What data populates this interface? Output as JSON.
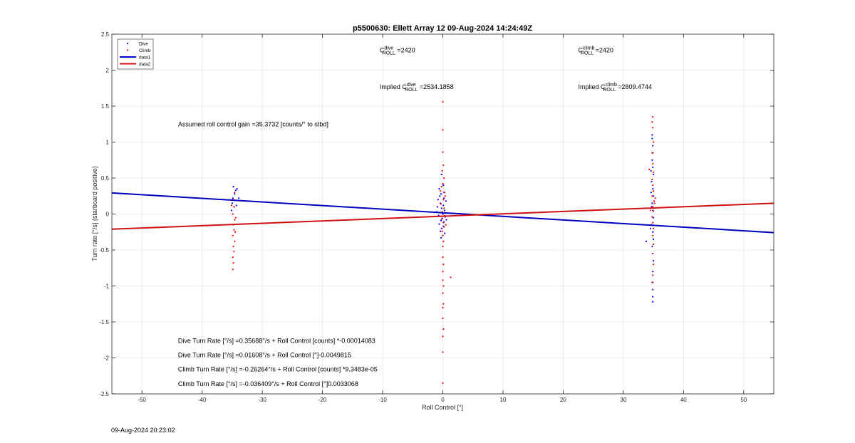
{
  "figure": {
    "title": "p5500630: Ellett Array 12 09-Aug-2024 14:24:49Z",
    "footer_date": "09-Aug-2024 20:23:02"
  },
  "chart_data": {
    "type": "scatter",
    "xlabel": "Roll Control [°]",
    "ylabel": "Turn rate [°/s] (starboard positive)",
    "xlim": [
      -55,
      55
    ],
    "ylim": [
      -2.5,
      2.5
    ],
    "xticks": [
      -50,
      -40,
      -30,
      -20,
      -10,
      0,
      10,
      20,
      30,
      40,
      50
    ],
    "yticks": [
      -2.5,
      -2,
      -1.5,
      -1,
      -0.5,
      0,
      0.5,
      1,
      1.5,
      2,
      2.5
    ],
    "grid": true,
    "legend_position": "top-left",
    "legend": [
      {
        "label": "Dive",
        "kind": "marker",
        "color": "#0000ff"
      },
      {
        "label": "Climb",
        "kind": "marker",
        "color": "#ff0000"
      },
      {
        "label": "data1",
        "kind": "line",
        "color": "#0000c0"
      },
      {
        "label": "data2",
        "kind": "line",
        "color": "#d01010"
      }
    ],
    "series": [
      {
        "name": "Dive",
        "kind": "scatter",
        "color": "#0000ff",
        "points": [
          [
            -34.8,
            0.38
          ],
          [
            -34.4,
            0.33
          ],
          [
            -34.2,
            0.35
          ],
          [
            -34.6,
            0.28
          ],
          [
            -34.9,
            0.22
          ],
          [
            -35.0,
            0.15
          ],
          [
            -34.7,
            0.1
          ],
          [
            -35.1,
            0.05
          ],
          [
            -33.9,
            0.22
          ],
          [
            -34.3,
            0.12
          ],
          [
            -0.6,
            0.35
          ],
          [
            -0.3,
            0.28
          ],
          [
            0.2,
            0.3
          ],
          [
            -0.8,
            0.2
          ],
          [
            -0.4,
            0.15
          ],
          [
            0.1,
            0.12
          ],
          [
            -0.2,
            0.08
          ],
          [
            0.3,
            0.05
          ],
          [
            -0.5,
            0.02
          ],
          [
            0.0,
            0.0
          ],
          [
            -0.7,
            -0.02
          ],
          [
            0.4,
            -0.04
          ],
          [
            -0.1,
            -0.06
          ],
          [
            -0.3,
            -0.09
          ],
          [
            0.2,
            -0.11
          ],
          [
            -0.6,
            -0.14
          ],
          [
            0.1,
            -0.17
          ],
          [
            -0.2,
            -0.2
          ],
          [
            -0.4,
            -0.24
          ],
          [
            0.3,
            -0.27
          ],
          [
            0.0,
            -0.3
          ],
          [
            -0.9,
            0.1
          ],
          [
            0.5,
            0.18
          ],
          [
            -0.5,
            0.25
          ],
          [
            0.6,
            -0.08
          ],
          [
            -1.0,
            0.03
          ],
          [
            0.2,
            0.22
          ],
          [
            -0.3,
            -0.33
          ],
          [
            0.1,
            0.4
          ],
          [
            -0.2,
            0.55
          ],
          [
            34.8,
            0.75
          ],
          [
            34.9,
            0.65
          ],
          [
            35.0,
            0.55
          ],
          [
            34.7,
            0.45
          ],
          [
            34.9,
            0.35
          ],
          [
            35.0,
            0.25
          ],
          [
            34.8,
            0.15
          ],
          [
            34.9,
            0.05
          ],
          [
            35.0,
            -0.05
          ],
          [
            34.7,
            -0.15
          ],
          [
            34.9,
            -0.25
          ],
          [
            35.0,
            -0.35
          ],
          [
            34.8,
            -0.45
          ],
          [
            34.9,
            -0.55
          ],
          [
            35.0,
            -0.65
          ],
          [
            34.9,
            -0.8
          ],
          [
            34.8,
            -0.95
          ],
          [
            34.9,
            -1.05
          ],
          [
            34.9,
            -1.15
          ],
          [
            34.9,
            -1.22
          ],
          [
            34.6,
            0.3
          ],
          [
            34.5,
            -0.2
          ],
          [
            33.8,
            -0.38
          ],
          [
            34.6,
            0.6
          ],
          [
            34.8,
            1.05
          ],
          [
            34.9,
            0.95
          ],
          [
            34.8,
            1.1
          ],
          [
            34.9,
            0.85
          ],
          [
            35.0,
            -0.42
          ],
          [
            34.7,
            0.1
          ]
        ]
      },
      {
        "name": "Climb",
        "kind": "scatter",
        "color": "#ff0000",
        "points": [
          [
            -34.6,
            0.3
          ],
          [
            -34.8,
            0.2
          ],
          [
            -34.7,
            0.1
          ],
          [
            -34.9,
            0.0
          ],
          [
            -34.6,
            -0.08
          ],
          [
            -34.8,
            -0.15
          ],
          [
            -34.7,
            -0.22
          ],
          [
            -34.9,
            -0.3
          ],
          [
            -34.6,
            -0.38
          ],
          [
            -34.8,
            -0.45
          ],
          [
            -34.7,
            -0.52
          ],
          [
            -34.9,
            -0.6
          ],
          [
            -34.8,
            -0.68
          ],
          [
            -34.9,
            -0.77
          ],
          [
            -34.5,
            -0.25
          ],
          [
            -34.4,
            -0.05
          ],
          [
            -35.1,
            0.12
          ],
          [
            0.0,
            1.56
          ],
          [
            0.0,
            1.17
          ],
          [
            0.0,
            0.86
          ],
          [
            0.1,
            0.68
          ],
          [
            -0.1,
            0.6
          ],
          [
            0.2,
            0.5
          ],
          [
            0.0,
            0.42
          ],
          [
            -0.2,
            0.38
          ],
          [
            0.3,
            0.3
          ],
          [
            0.1,
            0.2
          ],
          [
            -0.3,
            0.14
          ],
          [
            0.2,
            0.08
          ],
          [
            -0.1,
            0.03
          ],
          [
            0.3,
            -0.02
          ],
          [
            -0.2,
            -0.07
          ],
          [
            0.1,
            -0.12
          ],
          [
            0.2,
            -0.18
          ],
          [
            -0.1,
            -0.24
          ],
          [
            0.0,
            -0.3
          ],
          [
            0.1,
            -0.38
          ],
          [
            0.0,
            -0.45
          ],
          [
            0.0,
            -0.6
          ],
          [
            0.1,
            -0.7
          ],
          [
            0.0,
            -0.8
          ],
          [
            0.0,
            -0.92
          ],
          [
            0.1,
            -1.0
          ],
          [
            0.0,
            -1.1
          ],
          [
            0.1,
            -1.25
          ],
          [
            0.0,
            -1.3
          ],
          [
            0.0,
            -1.45
          ],
          [
            0.1,
            -1.6
          ],
          [
            0.0,
            -1.7
          ],
          [
            0.0,
            -1.92
          ],
          [
            0.0,
            -2.35
          ],
          [
            1.3,
            -0.88
          ],
          [
            0.4,
            0.25
          ],
          [
            -0.4,
            0.32
          ],
          [
            0.5,
            -0.15
          ],
          [
            34.9,
            1.35
          ],
          [
            34.8,
            1.28
          ],
          [
            34.9,
            1.2
          ],
          [
            35.0,
            1.0
          ],
          [
            34.8,
            0.85
          ],
          [
            34.9,
            0.7
          ],
          [
            35.0,
            0.58
          ],
          [
            34.8,
            0.48
          ],
          [
            34.9,
            0.4
          ],
          [
            35.0,
            0.32
          ],
          [
            34.8,
            0.25
          ],
          [
            35.1,
            0.18
          ],
          [
            34.9,
            0.1
          ],
          [
            35.0,
            0.04
          ],
          [
            34.8,
            -0.04
          ],
          [
            34.9,
            -0.12
          ],
          [
            35.0,
            -0.2
          ],
          [
            34.9,
            -0.3
          ],
          [
            35.0,
            -0.42
          ],
          [
            34.9,
            -0.55
          ],
          [
            35.0,
            -0.7
          ],
          [
            34.9,
            -0.85
          ],
          [
            34.9,
            -0.95
          ],
          [
            35.2,
            0.15
          ],
          [
            34.5,
            0.05
          ],
          [
            34.3,
            0.62
          ],
          [
            35.3,
            0.22
          ]
        ]
      },
      {
        "name": "data1",
        "kind": "line",
        "color": "#0000c0",
        "x": [
          -55,
          55
        ],
        "y": [
          0.2931,
          -0.2581
        ]
      },
      {
        "name": "data2",
        "kind": "line",
        "color": "#d01010",
        "x": [
          -55,
          55
        ],
        "y": [
          -0.2109,
          0.1501
        ]
      }
    ],
    "annotations": [
      {
        "data_x": -10.5,
        "data_y": 2.25,
        "parts": [
          [
            "C",
            ""
          ],
          [
            "dive",
            "sup"
          ],
          [
            "ROLL",
            "sub"
          ],
          [
            " =2420",
            ""
          ]
        ]
      },
      {
        "data_x": 22.5,
        "data_y": 2.25,
        "parts": [
          [
            "C",
            ""
          ],
          [
            "climb",
            "sup"
          ],
          [
            "ROLL",
            "sub"
          ],
          [
            " =2420",
            ""
          ]
        ]
      },
      {
        "data_x": -10.5,
        "data_y": 1.74,
        "parts": [
          [
            "Implied C",
            ""
          ],
          [
            "dive",
            "sup"
          ],
          [
            "ROLL",
            "sub"
          ],
          [
            " =2534.1858",
            ""
          ]
        ]
      },
      {
        "data_x": 22.5,
        "data_y": 1.74,
        "parts": [
          [
            "Implied C",
            ""
          ],
          [
            "climb",
            "sup"
          ],
          [
            "ROLL",
            "sub"
          ],
          [
            " =2809.4744",
            ""
          ]
        ]
      },
      {
        "data_x": -44.0,
        "data_y": 1.22,
        "parts": [
          [
            "Assumed roll control gain =35.3732 [counts/° to stbd]",
            ""
          ]
        ]
      },
      {
        "data_x": -44.0,
        "data_y": -1.79,
        "parts": [
          [
            "Dive Turn Rate [°/s] =0.35688°/s + Roll Control [counts] *-0.00014083",
            ""
          ]
        ]
      },
      {
        "data_x": -44.0,
        "data_y": -1.99,
        "parts": [
          [
            "Dive Turn Rate [°/s] =0.01608°/s + Roll Control [°]-0.0049815",
            ""
          ]
        ]
      },
      {
        "data_x": -44.0,
        "data_y": -2.19,
        "parts": [
          [
            "Climb Turn Rate [°/s] =-0.26264°/s + Roll Control [counts] *9.3483e-05",
            ""
          ]
        ]
      },
      {
        "data_x": -44.0,
        "data_y": -2.39,
        "parts": [
          [
            "Climb Turn Rate [°/s] =-0.036409°/s + Roll Control [°]0.0033068",
            ""
          ]
        ]
      }
    ]
  }
}
